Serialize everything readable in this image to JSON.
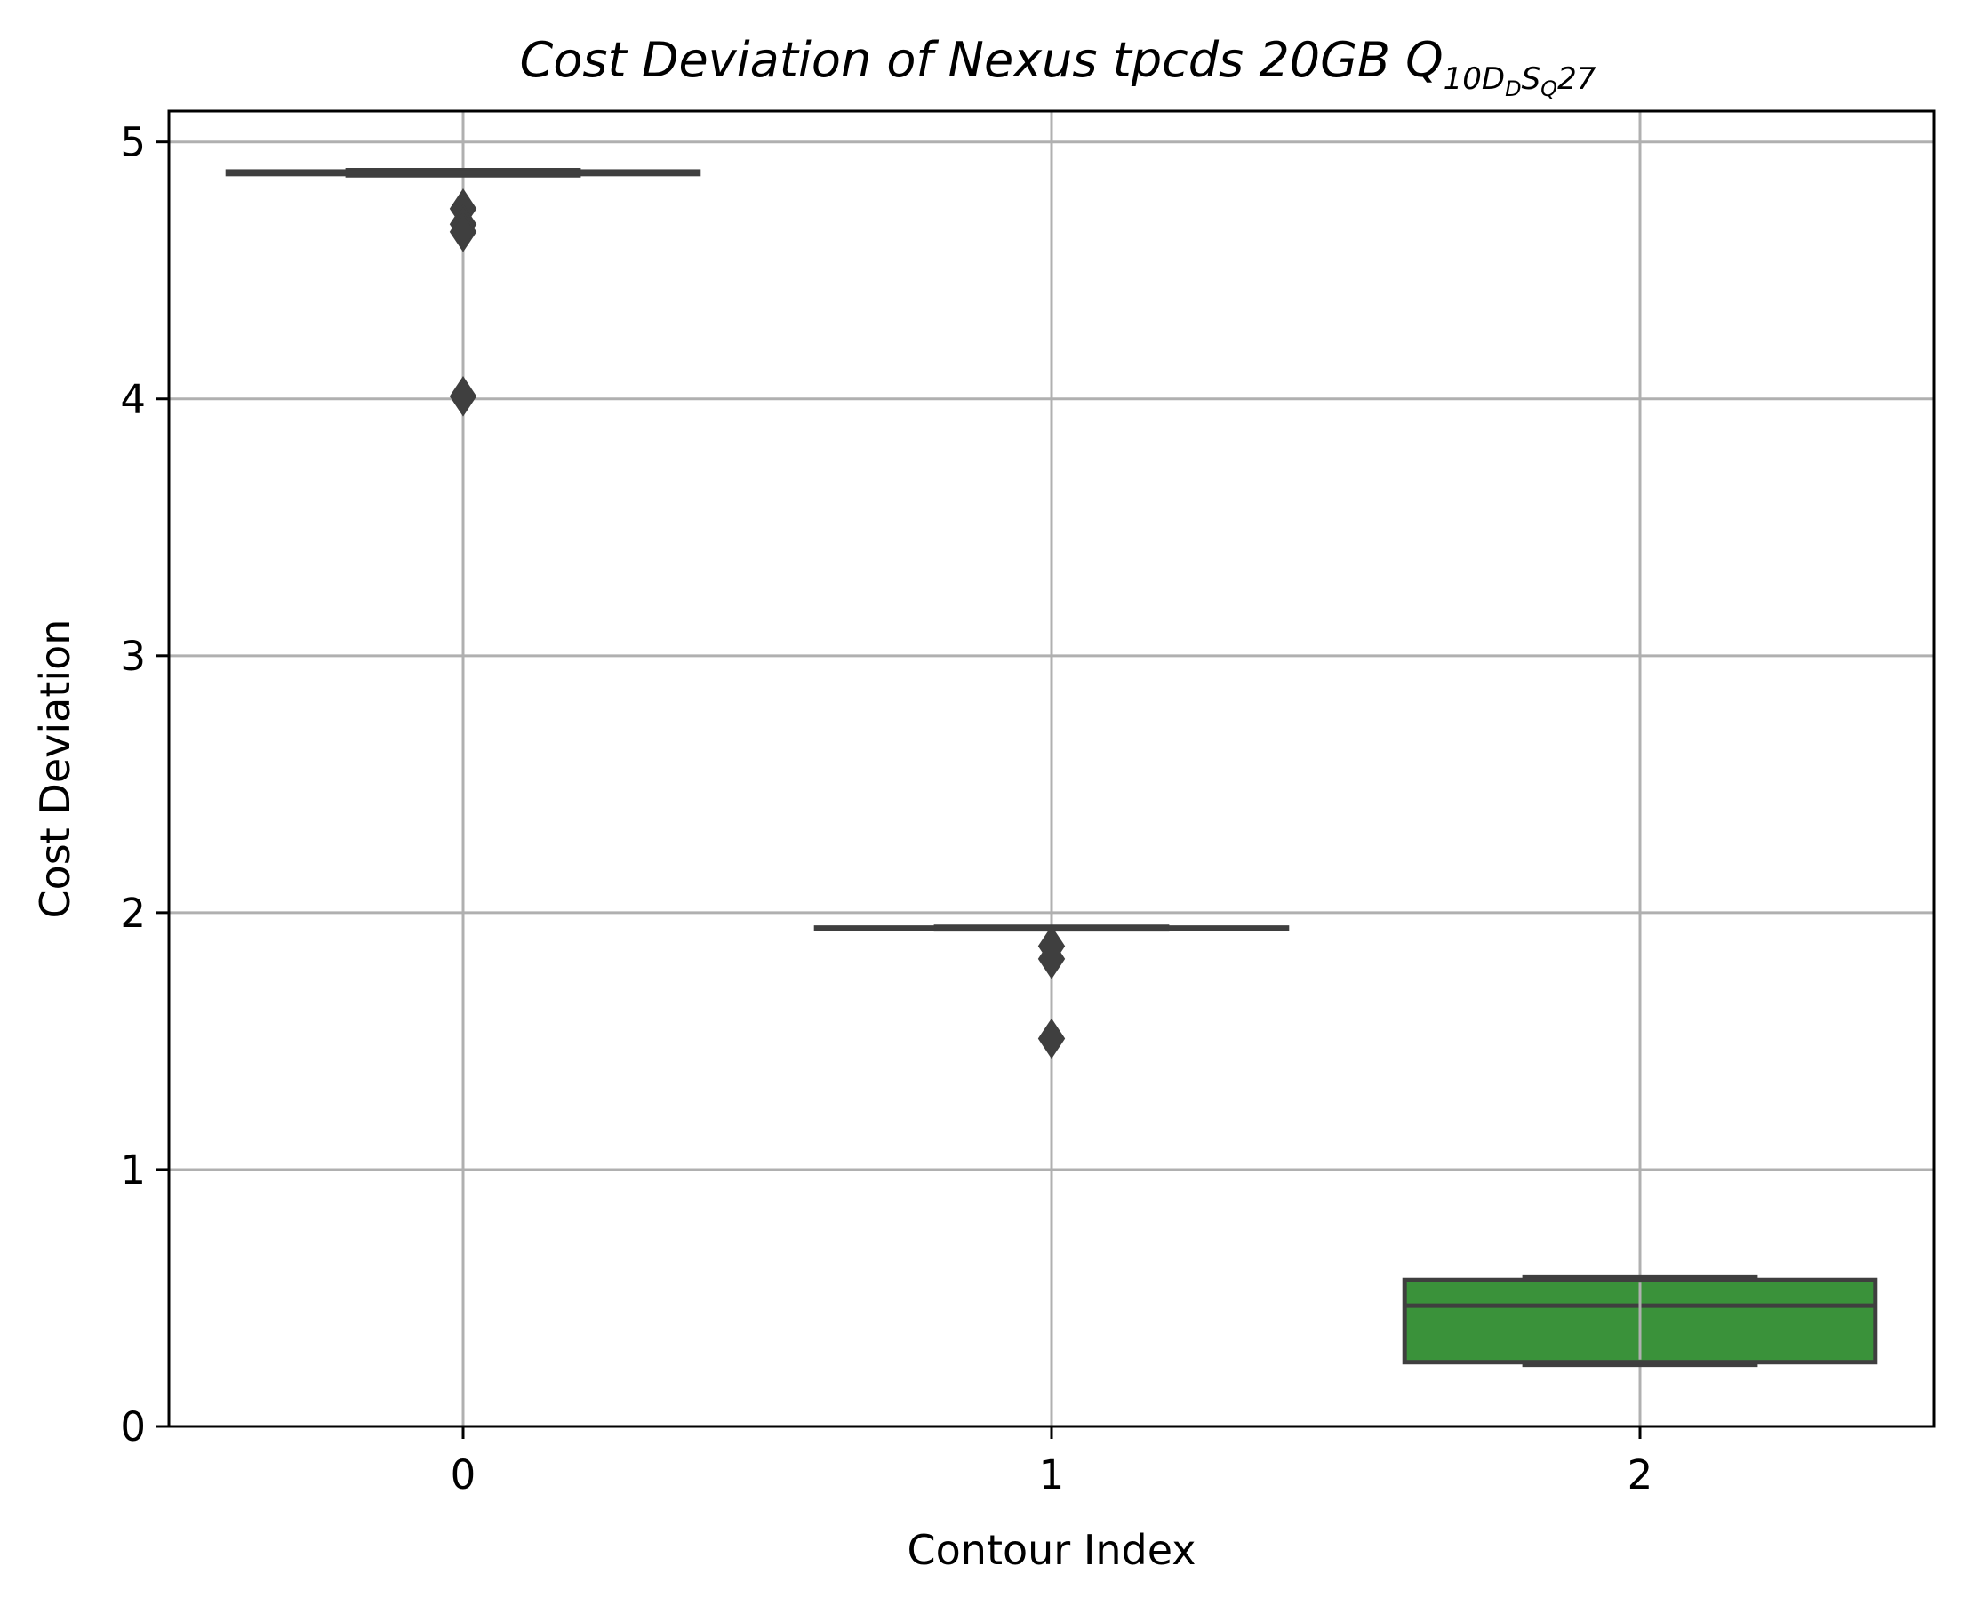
{
  "chart_data": {
    "type": "box",
    "title": {
      "main": "Cost Deviation of Nexus tpcds  20GB  ",
      "q": "Q",
      "sub1": "10",
      "d": "D",
      "sub2": "D",
      "s": "S",
      "sub3": "Q",
      "tail": "27"
    },
    "xlabel": "Contour Index",
    "ylabel": "Cost Deviation",
    "categories": [
      "0",
      "1",
      "2"
    ],
    "ylim": [
      0,
      5.12
    ],
    "yticks": [
      0,
      1,
      2,
      3,
      4,
      5
    ],
    "grid": true,
    "boxes": [
      {
        "category": "0",
        "whisker_low": 4.87,
        "q1": 4.875,
        "median": 4.88,
        "q3": 4.885,
        "whisker_high": 4.89,
        "fill": "#1f77b4",
        "outliers": [
          4.74,
          4.68,
          4.65,
          4.01
        ]
      },
      {
        "category": "1",
        "whisker_low": 1.935,
        "q1": 1.938,
        "median": 1.94,
        "q3": 1.942,
        "whisker_high": 1.945,
        "fill": "#ff7f0e",
        "outliers": [
          1.87,
          1.82,
          1.51
        ]
      },
      {
        "category": "2",
        "whisker_low": 0.24,
        "q1": 0.25,
        "median": 0.47,
        "q3": 0.57,
        "whisker_high": 0.58,
        "fill": "#3a923a",
        "outliers": []
      }
    ],
    "colors": {
      "box_edge": "#3f3f3f",
      "grid": "#b0b0b0",
      "axis": "#000000"
    }
  }
}
